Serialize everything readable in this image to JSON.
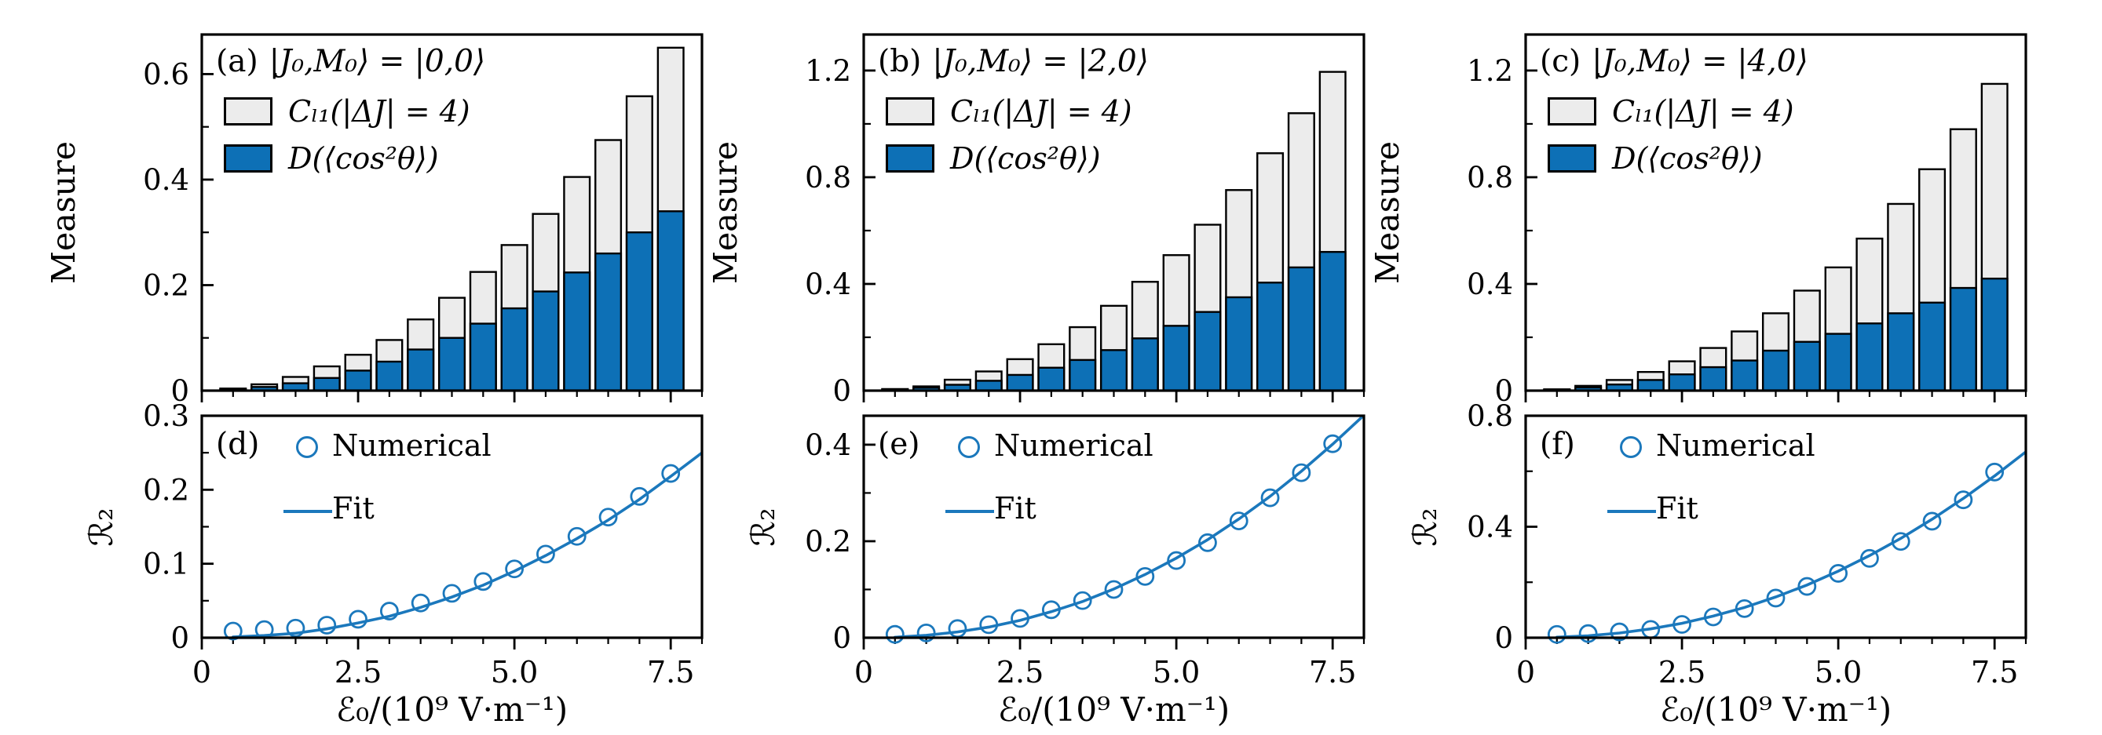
{
  "figure": {
    "colors": {
      "bar_blue": "#0d70b6",
      "bar_gray": "#ececec",
      "accent_blue": "#1b78bc",
      "edge_black": "#000000"
    },
    "xlabel": "ℰ₀/(10⁹ V·m⁻¹)",
    "ylabel_top": "Measure",
    "ylabel_bottom": "ℛ₂"
  },
  "chart_data": [
    {
      "id": "a",
      "type": "bar",
      "panel_label": "(a)",
      "title": "|J₀,M₀⟩ = |0,0⟩",
      "ylabel": "Measure",
      "x": [
        0.5,
        1.0,
        1.5,
        2.0,
        2.5,
        3.0,
        3.5,
        4.0,
        4.5,
        5.0,
        5.5,
        6.0,
        6.5,
        7.0,
        7.5
      ],
      "series": [
        {
          "name": "Cₗ₁(|ΔJ| = 4)",
          "color": "#ececec",
          "values": [
            0.004,
            0.012,
            0.026,
            0.046,
            0.068,
            0.096,
            0.135,
            0.176,
            0.225,
            0.276,
            0.335,
            0.405,
            0.475,
            0.558,
            0.65
          ]
        },
        {
          "name": "D(⟨cos²θ⟩)",
          "color": "#0d70b6",
          "values": [
            0.002,
            0.007,
            0.014,
            0.024,
            0.038,
            0.055,
            0.078,
            0.1,
            0.127,
            0.156,
            0.188,
            0.224,
            0.26,
            0.3,
            0.34
          ]
        }
      ],
      "xlim": [
        0,
        8
      ],
      "xticks": [
        0,
        2.5,
        5,
        7.5
      ],
      "xminor_step": 0.5,
      "xtick_labels": null,
      "ylim": [
        0,
        0.675
      ],
      "yticks": [
        0,
        0.2,
        0.4,
        0.6
      ],
      "ytick_labels": [
        "0",
        "0.2",
        "0.4",
        "0.6"
      ],
      "yminor": [
        0.1,
        0.3,
        0.5
      ]
    },
    {
      "id": "b",
      "type": "bar",
      "panel_label": "(b)",
      "title": "|J₀,M₀⟩ = |2,0⟩",
      "ylabel": "Measure",
      "x": [
        0.5,
        1.0,
        1.5,
        2.0,
        2.5,
        3.0,
        3.5,
        4.0,
        4.5,
        5.0,
        5.5,
        6.0,
        6.5,
        7.0,
        7.5
      ],
      "series": [
        {
          "name": "Cₗ₁(|ΔJ| = 4)",
          "color": "#ececec",
          "values": [
            0.006,
            0.016,
            0.041,
            0.072,
            0.118,
            0.174,
            0.238,
            0.318,
            0.408,
            0.508,
            0.622,
            0.752,
            0.89,
            1.04,
            1.195
          ]
        },
        {
          "name": "D(⟨cos²θ⟩)",
          "color": "#0d70b6",
          "values": [
            0.004,
            0.011,
            0.022,
            0.037,
            0.059,
            0.086,
            0.115,
            0.152,
            0.196,
            0.243,
            0.295,
            0.35,
            0.405,
            0.462,
            0.52
          ]
        }
      ],
      "xlim": [
        0,
        8
      ],
      "xticks": [
        0,
        2.5,
        5,
        7.5
      ],
      "xminor_step": 0.5,
      "xtick_labels": null,
      "ylim": [
        0,
        1.335
      ],
      "yticks": [
        0,
        0.4,
        0.8,
        1.2
      ],
      "ytick_labels": [
        "0",
        "0.4",
        "0.8",
        "1.2"
      ],
      "yminor": [
        0.2,
        0.6,
        1.0
      ]
    },
    {
      "id": "c",
      "type": "bar",
      "panel_label": "(c)",
      "title": "|J₀,M₀⟩ = |4,0⟩",
      "ylabel": "Measure",
      "x": [
        0.5,
        1.0,
        1.5,
        2.0,
        2.5,
        3.0,
        3.5,
        4.0,
        4.5,
        5.0,
        5.5,
        6.0,
        6.5,
        7.0,
        7.5
      ],
      "series": [
        {
          "name": "Cₗ₁(|ΔJ| = 4)",
          "color": "#ececec",
          "values": [
            0.005,
            0.018,
            0.04,
            0.07,
            0.11,
            0.16,
            0.222,
            0.29,
            0.375,
            0.462,
            0.57,
            0.7,
            0.83,
            0.98,
            1.15
          ]
        },
        {
          "name": "D(⟨cos²θ⟩)",
          "color": "#0d70b6",
          "values": [
            0.003,
            0.012,
            0.023,
            0.04,
            0.061,
            0.088,
            0.113,
            0.15,
            0.183,
            0.213,
            0.252,
            0.29,
            0.33,
            0.385,
            0.42
          ]
        }
      ],
      "xlim": [
        0,
        8
      ],
      "xticks": [
        0,
        2.5,
        5,
        7.5
      ],
      "xminor_step": 0.5,
      "xtick_labels": null,
      "ylim": [
        0,
        1.335
      ],
      "yticks": [
        0,
        0.4,
        0.8,
        1.2
      ],
      "ytick_labels": [
        "0",
        "0.4",
        "0.8",
        "1.2"
      ],
      "yminor": [
        0.2,
        0.6,
        1.0
      ]
    },
    {
      "id": "d",
      "type": "scatter",
      "panel_label": "(d)",
      "legend": {
        "numerical": "Numerical",
        "fit": "Fit"
      },
      "ylabel": "ℛ₂",
      "xlabel": "ℰ₀/(10⁹ V·m⁻¹)",
      "x": [
        0.5,
        1.0,
        1.5,
        2.0,
        2.5,
        3.0,
        3.5,
        4.0,
        4.5,
        5.0,
        5.5,
        6.0,
        6.5,
        7.0,
        7.5
      ],
      "numerical": [
        0.009,
        0.011,
        0.013,
        0.017,
        0.025,
        0.036,
        0.047,
        0.06,
        0.076,
        0.093,
        0.113,
        0.137,
        0.163,
        0.191,
        0.222
      ],
      "fit_x": [
        0.5,
        1.0,
        1.5,
        2.0,
        2.5,
        3.0,
        3.5,
        4.0,
        4.5,
        5.0,
        5.5,
        6.0,
        6.5,
        7.0,
        7.5,
        8.0
      ],
      "fit_y": [
        0.001,
        0.003,
        0.006,
        0.012,
        0.02,
        0.029,
        0.041,
        0.055,
        0.071,
        0.09,
        0.111,
        0.134,
        0.159,
        0.187,
        0.218,
        0.25
      ],
      "xlim": [
        0,
        8
      ],
      "xticks": [
        0,
        2.5,
        5,
        7.5
      ],
      "xminor_step": 0.5,
      "xtick_labels": [
        "0",
        "2.5",
        "5.0",
        "7.5"
      ],
      "ylim": [
        0,
        0.3
      ],
      "yticks": [
        0,
        0.1,
        0.2,
        0.3
      ],
      "ytick_labels": [
        "0",
        "0.1",
        "0.2",
        "0.3"
      ],
      "yminor": [
        0.05,
        0.15,
        0.25
      ]
    },
    {
      "id": "e",
      "type": "scatter",
      "panel_label": "(e)",
      "legend": {
        "numerical": "Numerical",
        "fit": "Fit"
      },
      "ylabel": "ℛ₂",
      "xlabel": "ℰ₀/(10⁹ V·m⁻¹)",
      "x": [
        0.5,
        1.0,
        1.5,
        2.0,
        2.5,
        3.0,
        3.5,
        4.0,
        4.5,
        5.0,
        5.5,
        6.0,
        6.5,
        7.0,
        7.5
      ],
      "numerical": [
        0.007,
        0.01,
        0.019,
        0.027,
        0.04,
        0.058,
        0.077,
        0.1,
        0.127,
        0.16,
        0.197,
        0.242,
        0.29,
        0.342,
        0.402
      ],
      "fit_x": [
        0.5,
        1.0,
        1.5,
        2.0,
        2.5,
        3.0,
        3.5,
        4.0,
        4.5,
        5.0,
        5.5,
        6.0,
        6.5,
        7.0,
        7.5,
        8.0
      ],
      "fit_y": [
        0.001,
        0.005,
        0.012,
        0.022,
        0.036,
        0.054,
        0.075,
        0.101,
        0.131,
        0.165,
        0.203,
        0.246,
        0.293,
        0.345,
        0.401,
        0.461
      ],
      "xlim": [
        0,
        8
      ],
      "xticks": [
        0,
        2.5,
        5,
        7.5
      ],
      "xminor_step": 0.5,
      "xtick_labels": [
        "0",
        "2.5",
        "5.0",
        "7.5"
      ],
      "ylim": [
        0,
        0.46
      ],
      "yticks": [
        0,
        0.2,
        0.4
      ],
      "ytick_labels": [
        "0",
        "0.2",
        "0.4"
      ],
      "yminor": [
        0.1,
        0.3
      ]
    },
    {
      "id": "f",
      "type": "scatter",
      "panel_label": "(f)",
      "legend": {
        "numerical": "Numerical",
        "fit": "Fit"
      },
      "ylabel": "ℛ₂",
      "xlabel": "ℰ₀/(10⁹ V·m⁻¹)",
      "x": [
        0.5,
        1.0,
        1.5,
        2.0,
        2.5,
        3.0,
        3.5,
        4.0,
        4.5,
        5.0,
        5.5,
        6.0,
        6.5,
        7.0,
        7.5
      ],
      "numerical": [
        0.012,
        0.015,
        0.021,
        0.03,
        0.048,
        0.075,
        0.105,
        0.143,
        0.185,
        0.232,
        0.286,
        0.347,
        0.42,
        0.497,
        0.597
      ],
      "fit_x": [
        0.5,
        1.0,
        1.5,
        2.0,
        2.5,
        3.0,
        3.5,
        4.0,
        4.5,
        5.0,
        5.5,
        6.0,
        6.5,
        7.0,
        7.5,
        8.0
      ],
      "fit_y": [
        0.002,
        0.007,
        0.017,
        0.032,
        0.052,
        0.078,
        0.109,
        0.147,
        0.19,
        0.24,
        0.296,
        0.358,
        0.427,
        0.502,
        0.583,
        0.67
      ],
      "xlim": [
        0,
        8
      ],
      "xticks": [
        0,
        2.5,
        5,
        7.5
      ],
      "xminor_step": 0.5,
      "xtick_labels": [
        "0",
        "2.5",
        "5.0",
        "7.5"
      ],
      "ylim": [
        0,
        0.8
      ],
      "yticks": [
        0,
        0.4,
        0.8
      ],
      "ytick_labels": [
        "0",
        "0.4",
        "0.8"
      ],
      "yminor": [
        0.2,
        0.6
      ]
    }
  ]
}
